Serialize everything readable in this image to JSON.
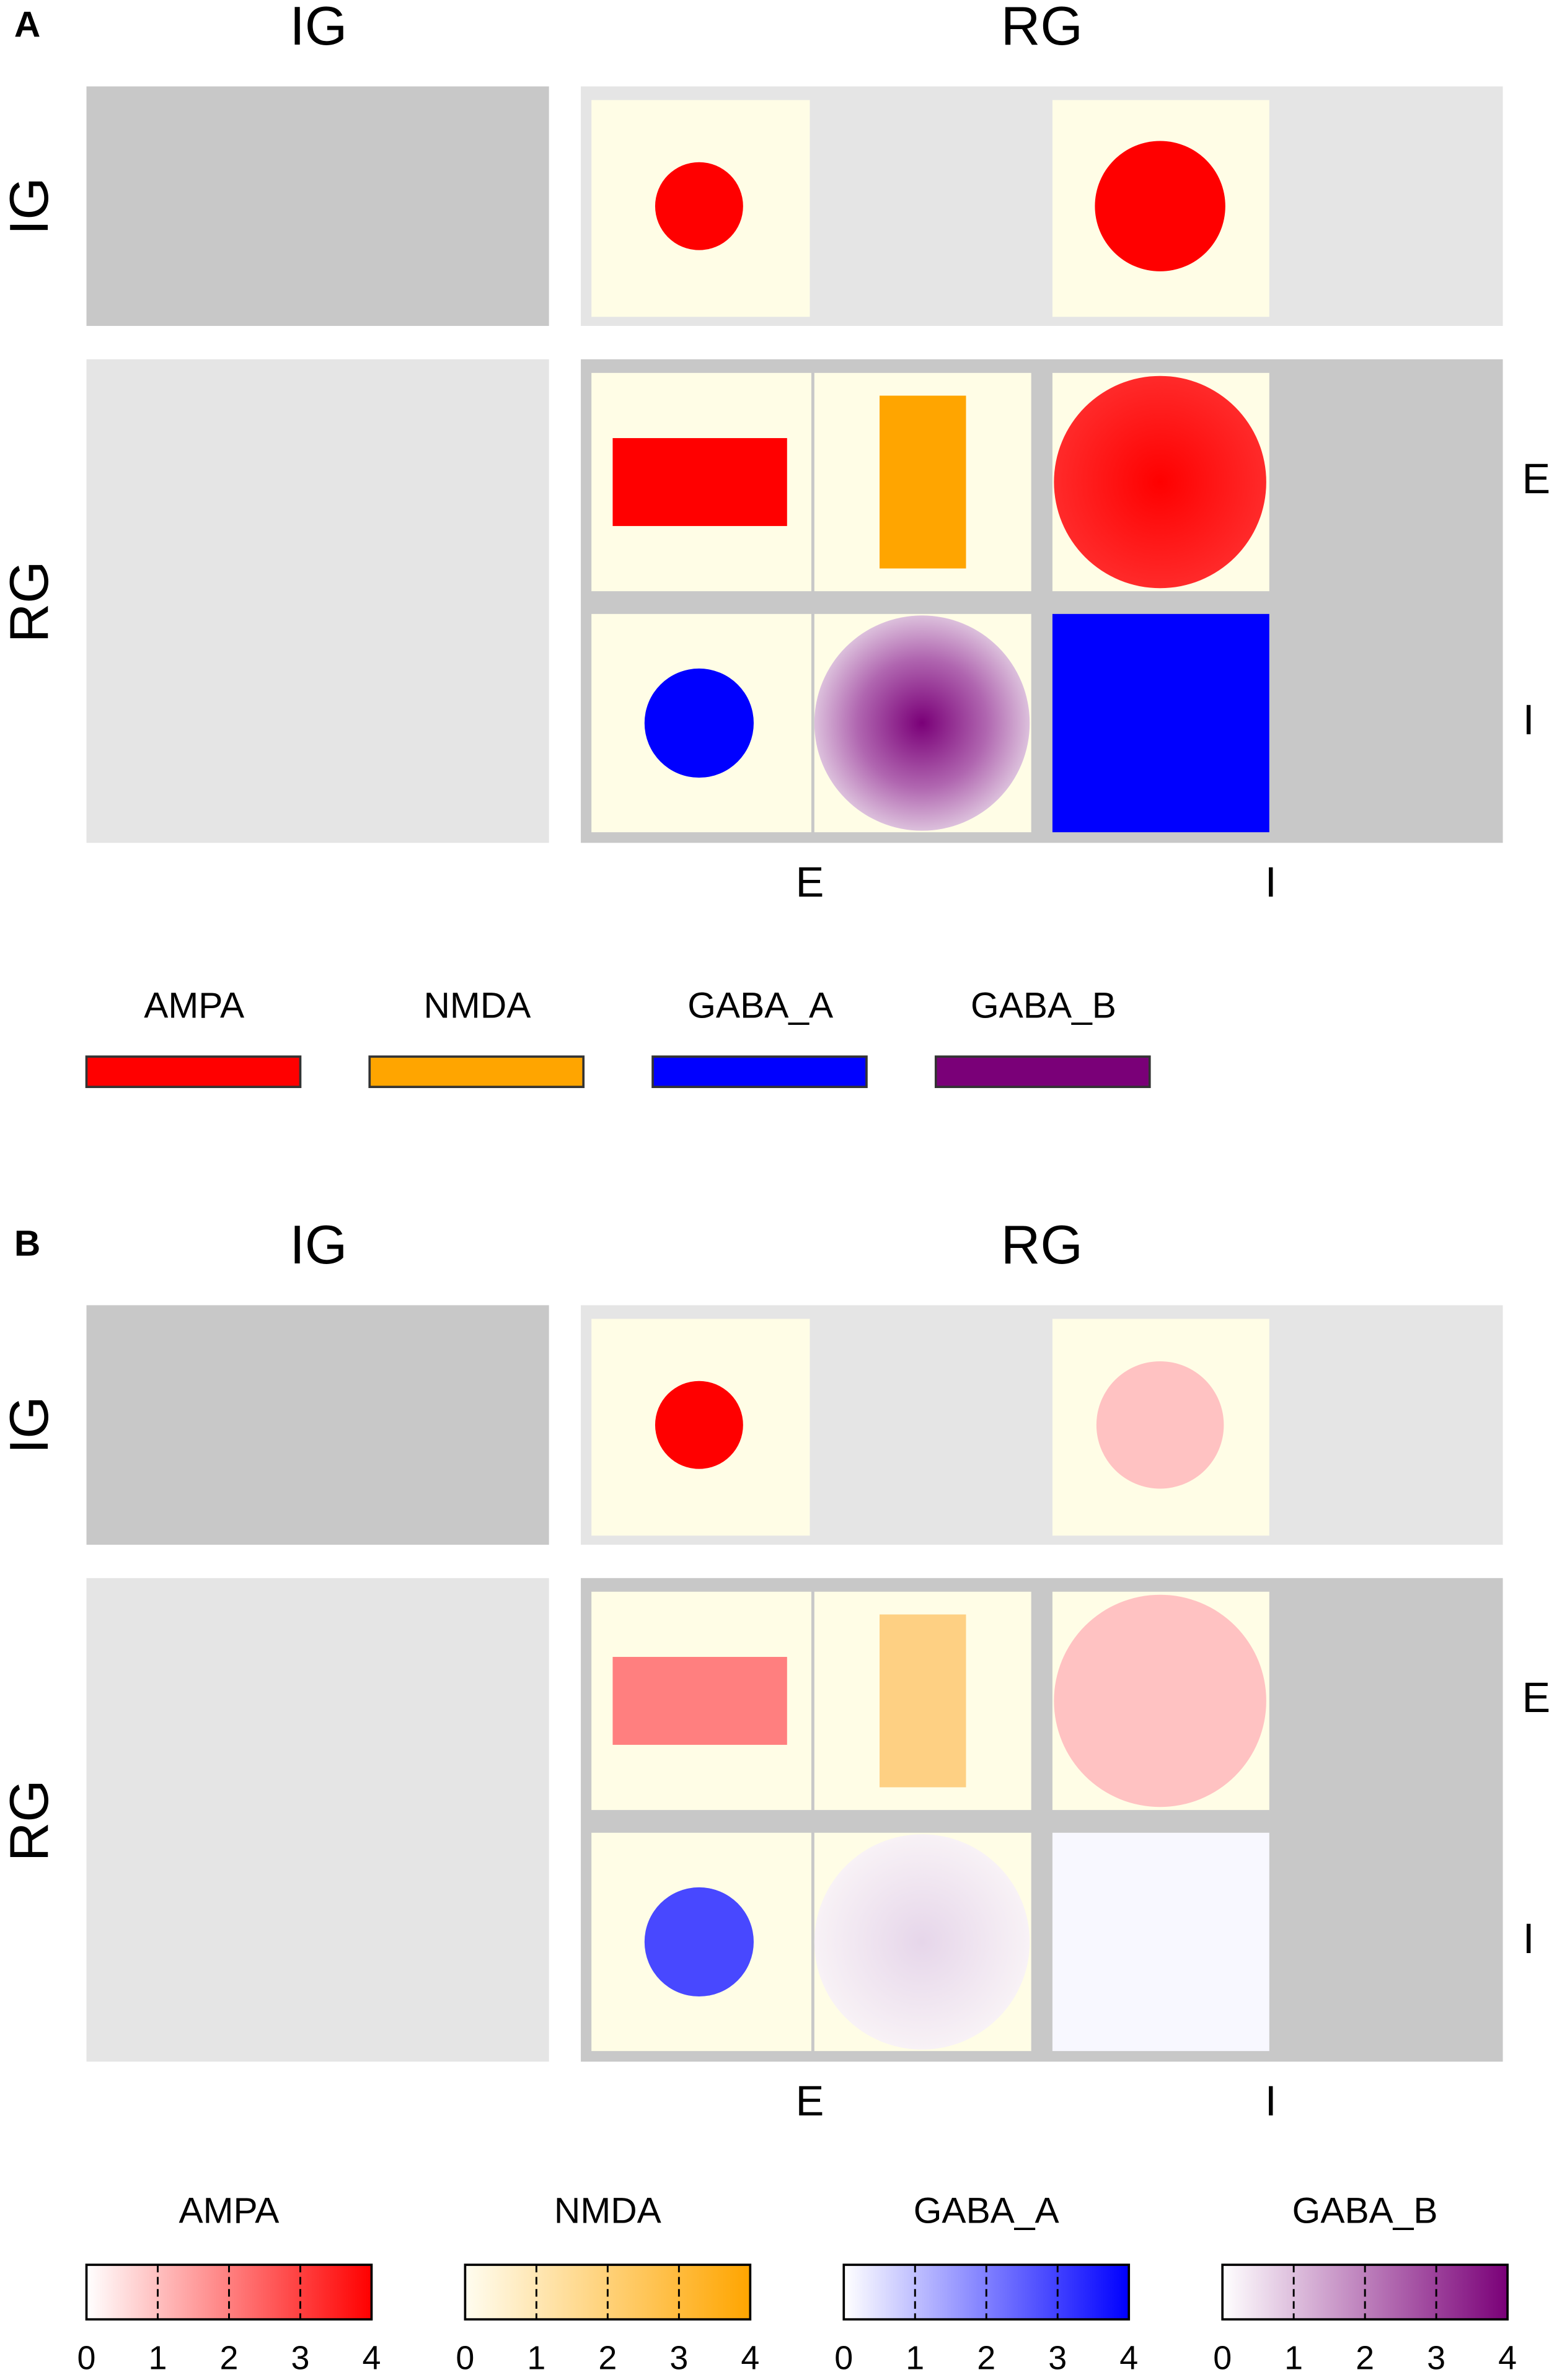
{
  "panels": [
    {
      "label": "A",
      "columns": [
        "IG",
        "RG"
      ],
      "rows": [
        "IG",
        "RG"
      ],
      "subrows": [
        "E",
        "I"
      ],
      "subcolumns": [
        "E",
        "I"
      ],
      "legend": [
        "AMPA",
        "NMDA",
        "GABA_A",
        "GABA_B"
      ]
    },
    {
      "label": "B",
      "columns": [
        "IG",
        "RG"
      ],
      "rows": [
        "IG",
        "RG"
      ],
      "subrows": [
        "E",
        "I"
      ],
      "subcolumns": [
        "E",
        "I"
      ],
      "legend": [
        "AMPA",
        "NMDA",
        "GABA_A",
        "GABA_B"
      ],
      "colorbar_ticks": [
        0,
        1,
        2,
        3,
        4
      ]
    }
  ]
}
